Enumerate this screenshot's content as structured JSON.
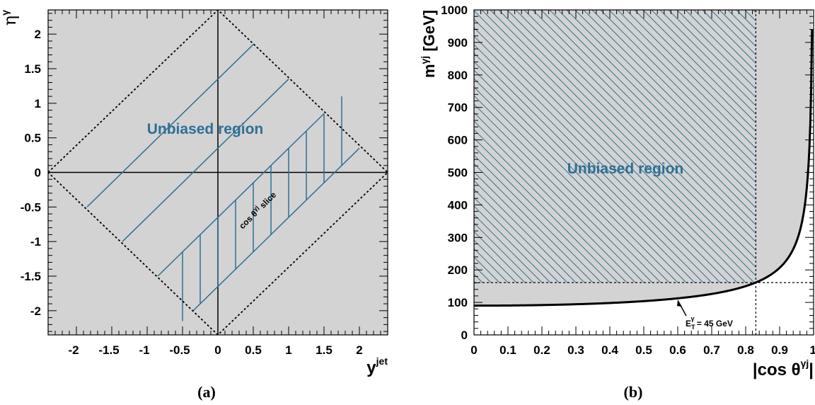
{
  "chart_data": [
    {
      "panel": "(a)",
      "type": "scatter",
      "xlabel": {
        "main": "y",
        "sup": "jet"
      },
      "ylabel": {
        "main": "η",
        "sup": "γ"
      },
      "xlim": [
        -2.4,
        2.4
      ],
      "ylim": [
        -2.35,
        2.35
      ],
      "x_ticks": [
        -2,
        -1.5,
        -1,
        -0.5,
        0,
        0.5,
        1,
        1.5,
        2
      ],
      "x_tick_labels": [
        "-2",
        "-1.5",
        "-1",
        "-0.5",
        "0",
        "0.5",
        "1",
        "1.5",
        "2"
      ],
      "y_ticks": [
        -2,
        -1.5,
        -1,
        -0.5,
        0,
        0.5,
        1,
        1.5,
        2
      ],
      "y_tick_labels": [
        "-2",
        "-1.5",
        "-1",
        "-0.5",
        "0",
        "0.5",
        "1",
        "1.5",
        "2"
      ],
      "region_label": "Unbiased region",
      "slice_label": {
        "main": "cos θ",
        "sup": "γj",
        "rest": " slice"
      },
      "acceptance_diamond": [
        [
          -2.4,
          0
        ],
        [
          0,
          2.35
        ],
        [
          2.4,
          0
        ],
        [
          0,
          -2.35
        ]
      ],
      "slice_lines": [
        {
          "x": [
            -1.85,
            0.5
          ],
          "y": [
            -0.5,
            1.85
          ]
        },
        {
          "x": [
            -1.35,
            1.0
          ],
          "y": [
            -1.0,
            1.35
          ]
        },
        {
          "x": [
            -0.85,
            1.5
          ],
          "y": [
            -1.5,
            0.85
          ]
        },
        {
          "x": [
            -0.35,
            2.0
          ],
          "y": [
            -2.0,
            0.35
          ]
        }
      ],
      "hatch_x": [
        -0.5,
        -0.25,
        0.0,
        0.25,
        0.5,
        0.75,
        1.0,
        1.25,
        1.5,
        1.75
      ]
    },
    {
      "panel": "(b)",
      "type": "line",
      "xlabel": {
        "main": "|cos θ",
        "sup": "γj",
        "rest": "|"
      },
      "ylabel": {
        "main": "m",
        "sup": "γj",
        "rest": " [GeV]"
      },
      "xlim": [
        0,
        1
      ],
      "ylim": [
        0,
        1000
      ],
      "x_ticks": [
        0,
        0.1,
        0.2,
        0.3,
        0.4,
        0.5,
        0.6,
        0.7,
        0.8,
        0.9,
        1
      ],
      "x_tick_labels": [
        "0",
        "0.1",
        "0.2",
        "0.3",
        "0.4",
        "0.5",
        "0.6",
        "0.7",
        "0.8",
        "0.9",
        "1"
      ],
      "y_ticks": [
        0,
        100,
        200,
        300,
        400,
        500,
        600,
        700,
        800,
        900,
        1000
      ],
      "y_tick_labels": [
        "0",
        "100",
        "200",
        "300",
        "400",
        "500",
        "600",
        "700",
        "800",
        "900",
        "1000"
      ],
      "region_label": "Unbiased region",
      "curve": {
        "formula": "m = 2*ET/sqrt(1-x^2)",
        "et_gev": 45
      },
      "curve_label": {
        "main": "E",
        "sub": "T",
        "sup": "γ",
        "rest": " = 45 GeV"
      },
      "curve_label_at": {
        "x": 0.6,
        "y": 113
      },
      "unbiased_cut": {
        "x": 0.83,
        "y": 161
      }
    }
  ]
}
